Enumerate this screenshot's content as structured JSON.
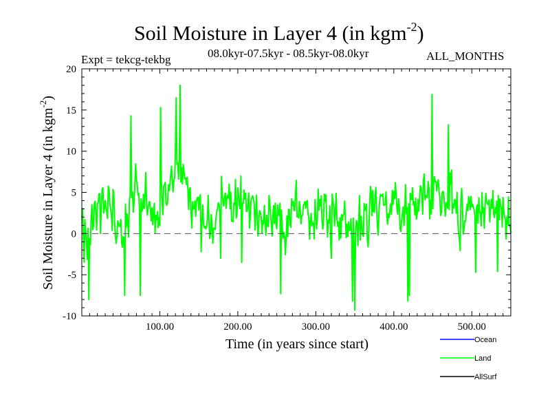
{
  "chart_data": {
    "type": "line",
    "title": "Soil Moisture in Layer 4 (in kgm",
    "title_superscript": "-2",
    "title_close": ")",
    "experiment_label": "Expt = tekcg-tekbg",
    "period_label": "08.0kyr-07.5kyr - 08.5kyr-08.0kyr",
    "months_label": "ALL_MONTHS",
    "xlabel": "Time (in years since start)",
    "ylabel": "Soil Moisture in Layer 4 (in kgm",
    "ylabel_superscript": "-2",
    "ylabel_close": ")",
    "xlim": [
      0,
      550
    ],
    "ylim": [
      -10,
      20
    ],
    "x_tick_labels": [
      "100.00",
      "200.00",
      "300.00",
      "400.00",
      "500.00"
    ],
    "x_tick_values": [
      100,
      200,
      300,
      400,
      500
    ],
    "y_tick_labels": [
      "-10",
      "-5",
      "0",
      "5",
      "10",
      "15",
      "20"
    ],
    "y_tick_values": [
      -10,
      -5,
      0,
      5,
      10,
      15,
      20
    ],
    "zero_line": true,
    "series": [
      {
        "name": "Ocean",
        "color": "#0000ff",
        "values": []
      },
      {
        "name": "Land",
        "color": "#00ff00",
        "x_step": 1,
        "anchor_x": [
          0,
          8,
          12,
          20,
          30,
          40,
          48,
          52,
          60,
          62,
          66,
          70,
          75,
          80,
          90,
          100,
          110,
          120,
          125,
          128,
          135,
          145,
          155,
          165,
          175,
          185,
          195,
          205,
          215,
          225,
          235,
          245,
          255,
          265,
          275,
          285,
          295,
          305,
          315,
          325,
          335,
          345,
          350,
          355,
          365,
          375,
          385,
          395,
          405,
          410,
          415,
          425,
          435,
          445,
          450,
          455,
          465,
          475,
          485,
          495,
          505,
          515,
          520,
          530,
          540,
          550
        ],
        "anchor_y": [
          1,
          0.5,
          2,
          3.5,
          3,
          2,
          1,
          0.5,
          3,
          6,
          5,
          4,
          3,
          3.5,
          3.5,
          4.5,
          5.5,
          6,
          7,
          8,
          5,
          3.5,
          2.5,
          2,
          3,
          3.5,
          3.5,
          3,
          2,
          2,
          2.5,
          2.5,
          2,
          2,
          2.5,
          2.5,
          3,
          2.5,
          2,
          2,
          1.5,
          0.5,
          -0.5,
          2,
          3,
          3.5,
          3,
          3,
          2,
          0.5,
          2.5,
          3.5,
          4,
          4.5,
          5.5,
          5,
          4.5,
          4,
          3.5,
          3.5,
          3,
          2.5,
          2,
          2.5,
          3,
          3
        ],
        "event_x": [
          3,
          9,
          55,
          75,
          63,
          101,
          126,
          121,
          153,
          178,
          205,
          255,
          320,
          350,
          347,
          418,
          420,
          449,
          505,
          533,
          470
        ],
        "event_y": [
          -3.5,
          -8,
          -7.5,
          -7.5,
          14.3,
          15.3,
          18,
          16.5,
          -2.2,
          -3,
          -3.5,
          -7.3,
          -3,
          -9.3,
          -8.2,
          -8.2,
          -7.5,
          16.9,
          -4.7,
          -4.6,
          13.2
        ],
        "noise_amplitude": 3.1,
        "seed": 20231
      },
      {
        "name": "AllSurf",
        "color": "#000000",
        "values": []
      }
    ],
    "legend": [
      "Ocean",
      "Land",
      "AllSurf"
    ],
    "legend_position": "below-right"
  }
}
